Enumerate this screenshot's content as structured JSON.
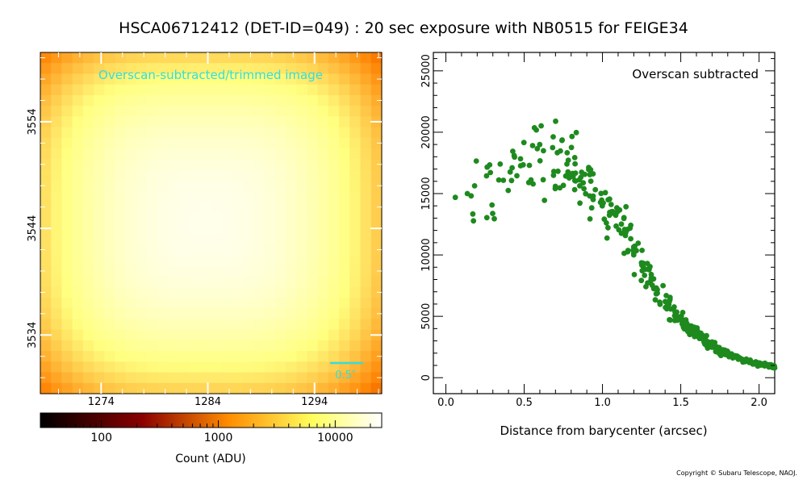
{
  "title": "HSCA06712412 (DET-ID=049) :  20 sec exposure with NB0515 for FEIGE34",
  "copyright": "Copyright © Subaru Telescope, NAOJ.",
  "colors": {
    "image_label": "#33dddd",
    "scatter_points": "#1e8a1e"
  },
  "chart_data": [
    {
      "type": "heatmap",
      "title": "Overscan-subtracted/trimmed image",
      "x_ticks": [
        "1274",
        "1284",
        "1294"
      ],
      "y_ticks": [
        "3554",
        "3544",
        "3534"
      ],
      "x_range": [
        1268.3,
        1300.3
      ],
      "y_range": [
        3528.5,
        3560.5
      ],
      "grid_size": 32,
      "center": [
        1283.8,
        3544.6
      ],
      "peak_adu": 19000,
      "scale_bar_label": "0.5″",
      "colormap": "afmhot",
      "colorbar": {
        "scale": "log",
        "range": [
          30,
          25000
        ],
        "ticks": [
          "100",
          "1000",
          "10000"
        ],
        "label": "Count (ADU)"
      }
    },
    {
      "type": "scatter",
      "xlabel": "Distance from barycenter (arcsec)",
      "ylabel": "",
      "xlim": [
        -0.08,
        2.1
      ],
      "ylim": [
        -1300,
        26500
      ],
      "x_ticks": [
        "0.0",
        "0.5",
        "1.0",
        "1.5",
        "2.0"
      ],
      "y_ticks": [
        "0",
        "5000",
        "10000",
        "15000",
        "20000",
        "25000"
      ],
      "annotation": "Overscan subtracted",
      "profile_knots": [
        [
          0.05,
          14700
        ],
        [
          0.3,
          15800
        ],
        [
          0.5,
          17600
        ],
        [
          0.65,
          18200
        ],
        [
          0.8,
          17200
        ],
        [
          0.95,
          15300
        ],
        [
          1.05,
          13600
        ],
        [
          1.15,
          11600
        ],
        [
          1.25,
          9400
        ],
        [
          1.35,
          7300
        ],
        [
          1.45,
          5400
        ],
        [
          1.55,
          4000
        ],
        [
          1.65,
          3000
        ],
        [
          1.75,
          2200
        ],
        [
          1.85,
          1700
        ],
        [
          2.0,
          1100
        ],
        [
          2.1,
          900
        ]
      ],
      "n_points": 400,
      "x_min": 0.05,
      "x_max": 2.1
    }
  ]
}
